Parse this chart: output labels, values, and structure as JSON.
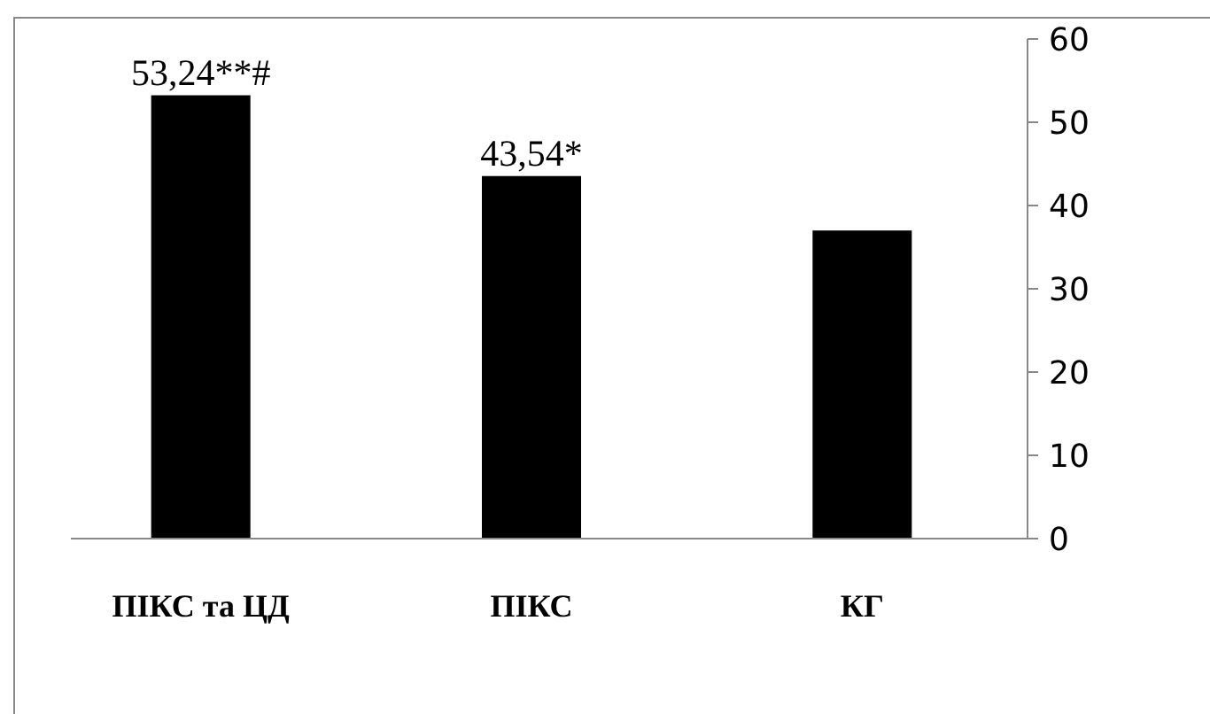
{
  "chart_data": {
    "type": "bar",
    "categories": [
      "ПІКС та ЦД",
      "ПІКС",
      "КГ"
    ],
    "values": [
      53.24,
      43.54,
      37
    ],
    "value_labels": [
      "53,24**#",
      "43,54*",
      null
    ],
    "color": "#000000",
    "ylim": [
      0,
      60
    ],
    "yticks": [
      0,
      10,
      20,
      30,
      40,
      50,
      60
    ],
    "grid": false
  }
}
